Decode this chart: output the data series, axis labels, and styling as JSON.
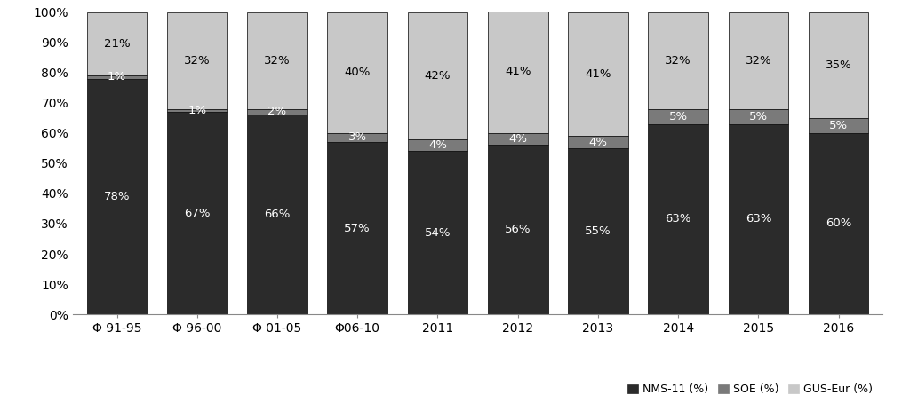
{
  "categories": [
    "Φ 91-95",
    "Φ 96-00",
    "Φ 01-05",
    "Φ06-10",
    "2011",
    "2012",
    "2013",
    "2014",
    "2015",
    "2016"
  ],
  "nms11": [
    78,
    67,
    66,
    57,
    54,
    56,
    55,
    63,
    63,
    60
  ],
  "soe": [
    1,
    1,
    2,
    3,
    4,
    4,
    4,
    5,
    5,
    5
  ],
  "gus": [
    21,
    32,
    32,
    40,
    42,
    41,
    41,
    32,
    32,
    35
  ],
  "nms11_labels": [
    "78%",
    "67%",
    "66%",
    "57%",
    "54%",
    "56%",
    "55%",
    "63%",
    "63%",
    "60%"
  ],
  "soe_labels": [
    "1%",
    "1%",
    "2%",
    "3%",
    "4%",
    "4%",
    "4%",
    "5%",
    "5%",
    "5%"
  ],
  "gus_labels": [
    "21%",
    "32%",
    "32%",
    "40%",
    "42%",
    "41%",
    "41%",
    "32%",
    "32%",
    "35%"
  ],
  "color_nms11": "#2b2b2b",
  "color_soe": "#7a7a7a",
  "color_gus": "#c8c8c8",
  "legend_labels": [
    "NMS-11 (%)",
    "SOE (%)",
    "GUS-Eur (%)"
  ],
  "yticks": [
    0,
    10,
    20,
    30,
    40,
    50,
    60,
    70,
    80,
    90,
    100
  ],
  "ytick_labels": [
    "0%",
    "10%",
    "20%",
    "30%",
    "40%",
    "50%",
    "60%",
    "70%",
    "80%",
    "90%",
    "100%"
  ],
  "background_color": "#ffffff",
  "bar_edge_color": "#000000",
  "bar_width": 0.75,
  "text_fontsize": 9.5,
  "legend_fontsize": 9.0,
  "axis_fontsize": 10.0
}
